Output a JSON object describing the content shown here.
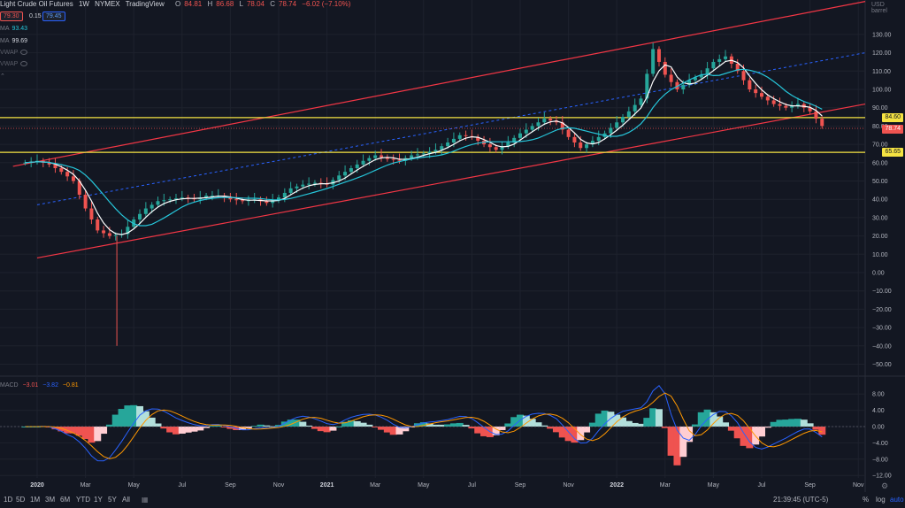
{
  "header": {
    "symbol": "Light Crude Oil Futures",
    "interval": "1W",
    "exchange": "NYMEX",
    "source": "TradingView",
    "open_label": "O",
    "open": "84.81",
    "high_label": "H",
    "high": "86.68",
    "low_label": "L",
    "low": "78.04",
    "close_label": "C",
    "close": "78.74",
    "change": "−6.02 (−7.10%)",
    "bid": "79.30",
    "spread": "0.15",
    "ask": "79.45"
  },
  "indicators": [
    {
      "name": "MA",
      "value": "93.43",
      "color": "#26c6da"
    },
    {
      "name": "MA",
      "value": "99.69",
      "color": "#ffffff"
    },
    {
      "name": "VWAP",
      "value": "",
      "color": "#787b86"
    },
    {
      "name": "VWAP",
      "value": "",
      "color": "#787b86"
    }
  ],
  "macd": {
    "label": "MACD",
    "v1": "−3.01",
    "v2": "−3.82",
    "v3": "−0.81"
  },
  "price_axis": {
    "unit_top": "USD",
    "unit": "barrel"
  },
  "price_tags": {
    "level_high": "84.60",
    "last": "78.74",
    "level_low": "65.65"
  },
  "bottom_bar": {
    "ranges": [
      "1D",
      "5D",
      "1M",
      "3M",
      "6M",
      "YTD",
      "1Y",
      "5Y",
      "All"
    ],
    "time": "21:39:45 (UTC-5)",
    "pct": "%",
    "log": "log",
    "auto": "auto"
  },
  "colors": {
    "up": "#26a69a",
    "down": "#ef5350",
    "ma_fast": "#ffffff",
    "ma_slow": "#26c6da",
    "level": "#f5e342",
    "channel": "#f23645",
    "dotted": "#2962ff"
  },
  "chart_data": {
    "type": "candlestick",
    "price_axis": {
      "ticks": [
        "130.00",
        "120.00",
        "110.00",
        "100.00",
        "90.00",
        "80.00",
        "70.00",
        "60.00",
        "50.00",
        "40.00",
        "30.00",
        "20.00",
        "10.00",
        "0.00",
        "−10.00",
        "−20.00",
        "−30.00",
        "−40.00",
        "−50.00"
      ],
      "range": [
        -55,
        140
      ]
    },
    "macd_axis": {
      "ticks": [
        "8.00",
        "4.00",
        "0.00",
        "−4.00",
        "−8.00",
        "−12.00"
      ],
      "range": [
        -12,
        10
      ]
    },
    "time_axis": {
      "labels": [
        "2020",
        "Mar",
        "May",
        "Jul",
        "Sep",
        "Nov",
        "2021",
        "Mar",
        "May",
        "Jul",
        "Sep",
        "Nov",
        "2022",
        "Mar",
        "May",
        "Jul",
        "Sep",
        "Nov"
      ],
      "month_index": [
        0,
        2,
        4,
        6,
        8,
        10,
        12,
        14,
        16,
        18,
        20,
        22,
        24,
        26,
        28,
        30,
        32,
        34
      ]
    },
    "horizontal_levels": [
      84.6,
      65.65
    ],
    "last_price": 78.74,
    "weekly_close_path_months": [
      [
        -0.5,
        60
      ],
      [
        0,
        61
      ],
      [
        0.5,
        59
      ],
      [
        1,
        55
      ],
      [
        1.5,
        50
      ],
      [
        2,
        35
      ],
      [
        2.5,
        23
      ],
      [
        3,
        20
      ],
      [
        3.5,
        21
      ],
      [
        4,
        29
      ],
      [
        4.5,
        35
      ],
      [
        5,
        39
      ],
      [
        5.5,
        40
      ],
      [
        6,
        41
      ],
      [
        6.5,
        40
      ],
      [
        7,
        42
      ],
      [
        7.5,
        42
      ],
      [
        8,
        40
      ],
      [
        8.5,
        39
      ],
      [
        9,
        40
      ],
      [
        9.5,
        38
      ],
      [
        10,
        41
      ],
      [
        10.5,
        46
      ],
      [
        11,
        48
      ],
      [
        11.5,
        49
      ],
      [
        12,
        48
      ],
      [
        12.5,
        53
      ],
      [
        13,
        57
      ],
      [
        13.5,
        61
      ],
      [
        14,
        64
      ],
      [
        14.5,
        62
      ],
      [
        15,
        61
      ],
      [
        15.5,
        64
      ],
      [
        16,
        65
      ],
      [
        16.5,
        67
      ],
      [
        17,
        71
      ],
      [
        17.5,
        75
      ],
      [
        18,
        74
      ],
      [
        18.5,
        70
      ],
      [
        19,
        67
      ],
      [
        19.5,
        71
      ],
      [
        20,
        76
      ],
      [
        20.5,
        80
      ],
      [
        21,
        84
      ],
      [
        21.5,
        82
      ],
      [
        22,
        74
      ],
      [
        22.5,
        68
      ],
      [
        23,
        72
      ],
      [
        23.5,
        76
      ],
      [
        24,
        82
      ],
      [
        24.5,
        88
      ],
      [
        25,
        95
      ],
      [
        25.5,
        122
      ],
      [
        26,
        108
      ],
      [
        26.5,
        100
      ],
      [
        27,
        105
      ],
      [
        27.5,
        108
      ],
      [
        28,
        115
      ],
      [
        28.5,
        118
      ],
      [
        29,
        110
      ],
      [
        29.5,
        100
      ],
      [
        30,
        96
      ],
      [
        30.5,
        92
      ],
      [
        31,
        90
      ],
      [
        31.5,
        92
      ],
      [
        32,
        88
      ],
      [
        32.5,
        80
      ]
    ]
  }
}
